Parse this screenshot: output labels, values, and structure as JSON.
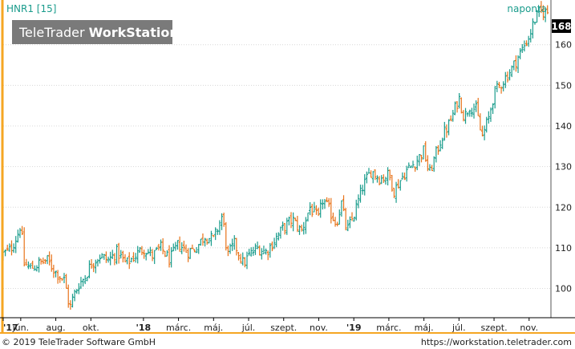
{
  "header": {
    "symbol": "HNR1 [15]",
    "period": "naponta",
    "logo_regular": "TeleTrader ",
    "logo_bold": "WorkStation"
  },
  "footer": {
    "copyright": "© 2019 TeleTrader Software GmbH",
    "url": "https://workstation.teletrader.com"
  },
  "colors": {
    "up": "#1a9c8c",
    "down": "#e8731a",
    "accent": "#f5a623",
    "last_price_bg": "#000000",
    "logo_bg": "#7a7a7a"
  },
  "chart_data": {
    "type": "ohlc",
    "title": "",
    "xlabel": "",
    "ylabel": "",
    "ylim": [
      93,
      171
    ],
    "grid": true,
    "y_ticks": [
      100,
      110,
      120,
      130,
      140,
      150,
      160
    ],
    "last_price": "168",
    "x_tick_labels": [
      {
        "label": "'17",
        "bold": true
      },
      {
        "label": "jún.",
        "bold": false
      },
      {
        "label": "aug.",
        "bold": false
      },
      {
        "label": "okt.",
        "bold": false
      },
      {
        "label": "'18",
        "bold": true
      },
      {
        "label": "márc.",
        "bold": false
      },
      {
        "label": "máj.",
        "bold": false
      },
      {
        "label": "júl.",
        "bold": false
      },
      {
        "label": "szept.",
        "bold": false
      },
      {
        "label": "nov.",
        "bold": false
      },
      {
        "label": "'19",
        "bold": true
      },
      {
        "label": "márc.",
        "bold": false
      },
      {
        "label": "máj.",
        "bold": false
      },
      {
        "label": "júl.",
        "bold": false
      },
      {
        "label": "szept.",
        "bold": false
      },
      {
        "label": "nov.",
        "bold": false
      }
    ],
    "x_tick_months": [
      0,
      1,
      3,
      5,
      8,
      10,
      12,
      14,
      16,
      18,
      20,
      22,
      24,
      26,
      28,
      30
    ],
    "x_range_months": [
      0,
      31.2
    ],
    "series": [
      {
        "values": [
          [
            0.0,
            108.5
          ],
          [
            0.4,
            109.5
          ],
          [
            0.8,
            113
          ],
          [
            1.0,
            116
          ],
          [
            1.2,
            106
          ],
          [
            1.6,
            105
          ],
          [
            2.0,
            106
          ],
          [
            2.5,
            107
          ],
          [
            3.0,
            104
          ],
          [
            3.5,
            102
          ],
          [
            3.8,
            95
          ],
          [
            4.0,
            98
          ],
          [
            4.3,
            101
          ],
          [
            4.7,
            103
          ],
          [
            5.0,
            106
          ],
          [
            5.5,
            108
          ],
          [
            6.0,
            107
          ],
          [
            6.5,
            109
          ],
          [
            7.0,
            106
          ],
          [
            7.5,
            108
          ],
          [
            8.0,
            110
          ],
          [
            8.5,
            108
          ],
          [
            9.0,
            110
          ],
          [
            9.5,
            107
          ],
          [
            10.0,
            111
          ],
          [
            10.5,
            109
          ],
          [
            11.0,
            110
          ],
          [
            11.5,
            113
          ],
          [
            12.0,
            112
          ],
          [
            12.5,
            118
          ],
          [
            12.8,
            108
          ],
          [
            13.2,
            111
          ],
          [
            13.7,
            106
          ],
          [
            14.0,
            108
          ],
          [
            14.5,
            110
          ],
          [
            15.0,
            109
          ],
          [
            15.5,
            112
          ],
          [
            16.0,
            115
          ],
          [
            16.5,
            117
          ],
          [
            17.0,
            114
          ],
          [
            17.5,
            120
          ],
          [
            18.0,
            117
          ],
          [
            18.2,
            122
          ],
          [
            18.5,
            120
          ],
          [
            19.0,
            116
          ],
          [
            19.3,
            121
          ],
          [
            19.6,
            114
          ],
          [
            20.0,
            118
          ],
          [
            20.5,
            125
          ],
          [
            21.0,
            129
          ],
          [
            21.5,
            127
          ],
          [
            22.0,
            128
          ],
          [
            22.3,
            124
          ],
          [
            22.7,
            127
          ],
          [
            23.0,
            129
          ],
          [
            23.5,
            131
          ],
          [
            24.0,
            134
          ],
          [
            24.3,
            128
          ],
          [
            24.6,
            132
          ],
          [
            25.0,
            137
          ],
          [
            25.5,
            141
          ],
          [
            26.0,
            147
          ],
          [
            26.3,
            142
          ],
          [
            26.6,
            145
          ],
          [
            27.0,
            144
          ],
          [
            27.3,
            137
          ],
          [
            27.7,
            142
          ],
          [
            28.0,
            148
          ],
          [
            28.5,
            151
          ],
          [
            29.0,
            154
          ],
          [
            29.5,
            158
          ],
          [
            30.0,
            162
          ],
          [
            30.3,
            166
          ],
          [
            30.6,
            168
          ],
          [
            31.0,
            168
          ]
        ]
      }
    ]
  }
}
